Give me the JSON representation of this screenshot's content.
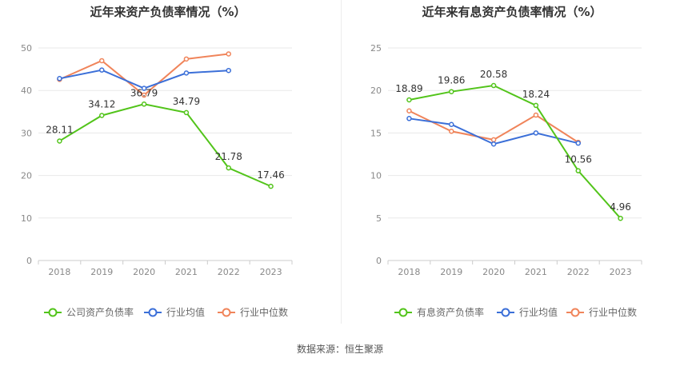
{
  "source_text": "数据来源：恒生聚源",
  "chart_data": [
    {
      "type": "line",
      "title": "近年来资产负债率情况（%）",
      "categories": [
        "2018",
        "2019",
        "2020",
        "2021",
        "2022",
        "2023"
      ],
      "ylim": [
        0,
        50
      ],
      "yticks": [
        0,
        10,
        20,
        30,
        40,
        50
      ],
      "grid": true,
      "legend_position": "bottom",
      "series": [
        {
          "name": "公司资产负债率",
          "color": "#52c41a",
          "values": [
            28.11,
            34.12,
            36.79,
            34.79,
            21.78,
            17.46
          ],
          "labels": [
            "28.11",
            "34.12",
            "36.79",
            "34.79",
            "21.78",
            "17.46"
          ],
          "label_dy": [
            -10,
            -10,
            -10,
            -10,
            -10,
            -10
          ]
        },
        {
          "name": "行业均值",
          "color": "#3b6fd8",
          "values": [
            42.8,
            44.8,
            40.5,
            44.1,
            44.7,
            null
          ]
        },
        {
          "name": "行业中位数",
          "color": "#f0845a",
          "values": [
            42.6,
            47.0,
            38.9,
            47.4,
            48.6,
            null
          ]
        }
      ]
    },
    {
      "type": "line",
      "title": "近年来有息资产负债率情况（%）",
      "categories": [
        "2018",
        "2019",
        "2020",
        "2021",
        "2022",
        "2023"
      ],
      "ylim": [
        0,
        25
      ],
      "yticks": [
        0,
        5,
        10,
        15,
        20,
        25
      ],
      "grid": true,
      "legend_position": "bottom",
      "series": [
        {
          "name": "有息资产负债率",
          "color": "#52c41a",
          "values": [
            18.89,
            19.86,
            20.58,
            18.24,
            10.56,
            4.96
          ],
          "labels": [
            "18.89",
            "19.86",
            "20.58",
            "18.24",
            "10.56",
            "4.96"
          ],
          "label_dy": [
            -10,
            -10,
            -10,
            -10,
            -10,
            -10
          ]
        },
        {
          "name": "行业均值",
          "color": "#3b6fd8",
          "values": [
            16.7,
            16.0,
            13.7,
            15.0,
            13.8,
            null
          ]
        },
        {
          "name": "行业中位数",
          "color": "#f0845a",
          "values": [
            17.6,
            15.2,
            14.2,
            17.1,
            13.9,
            null
          ]
        }
      ]
    }
  ]
}
